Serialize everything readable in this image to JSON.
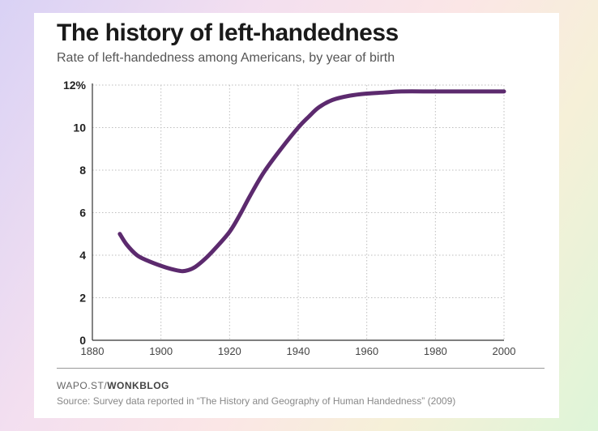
{
  "chart_data": {
    "type": "line",
    "title": "The history of left-handedness",
    "subtitle": "Rate of left-handedness among Americans, by year of birth",
    "xlabel": "",
    "ylabel": "",
    "xlim": [
      1880,
      2000
    ],
    "ylim": [
      0,
      12
    ],
    "x_ticks": [
      1880,
      1900,
      1920,
      1940,
      1960,
      1980,
      2000
    ],
    "x_tick_labels": [
      "1880",
      "1900",
      "1920",
      "1940",
      "1960",
      "1980",
      "2000"
    ],
    "y_ticks": [
      0,
      2,
      4,
      6,
      8,
      10,
      12
    ],
    "y_tick_labels": [
      "0",
      "2",
      "4",
      "6",
      "8",
      "10",
      "12%"
    ],
    "grid": true,
    "line_color": "#5c2a6e",
    "series": [
      {
        "x": [
          1888,
          1890,
          1893,
          1896,
          1900,
          1903,
          1906,
          1908,
          1910,
          1913,
          1916,
          1920,
          1923,
          1926,
          1930,
          1935,
          1940,
          1943,
          1946,
          1950,
          1955,
          1960,
          1965,
          1970,
          1980,
          1990,
          2000
        ],
        "y": [
          5.0,
          4.5,
          4.0,
          3.75,
          3.5,
          3.35,
          3.25,
          3.3,
          3.45,
          3.85,
          4.35,
          5.1,
          5.9,
          6.8,
          7.9,
          9.0,
          10.0,
          10.5,
          10.95,
          11.3,
          11.5,
          11.6,
          11.65,
          11.7,
          11.7,
          11.7,
          11.7
        ]
      }
    ]
  },
  "footer": {
    "credit_prefix": "WAPO.ST/",
    "credit_brand": "WONKBLOG",
    "source": "Source: Survey data reported in “The History and Geography of Human Handedness” (2009)"
  }
}
